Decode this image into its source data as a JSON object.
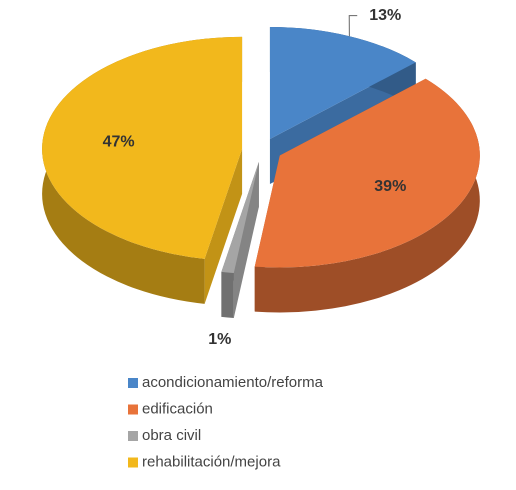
{
  "chart_data": {
    "type": "pie3d",
    "categories": [
      "acondicionamiento/reforma",
      "edificación",
      "obra civil",
      "rehabilitación/mejora"
    ],
    "values": [
      13,
      39,
      1,
      47
    ],
    "value_labels": [
      "13%",
      "39%",
      "1%",
      "47%"
    ],
    "colors": [
      "#4a86c8",
      "#e8733a",
      "#a5a5a5",
      "#f2b81c"
    ],
    "legend": "bottom"
  }
}
